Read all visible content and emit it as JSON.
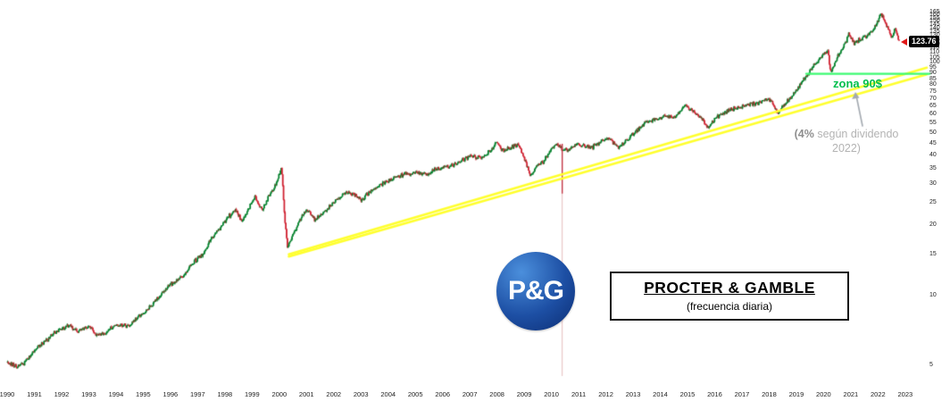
{
  "branding": {
    "logo_text": "P&G",
    "title": "PROCTER & GAMBLE",
    "subtitle": "(frecuencia diaria)"
  },
  "annotations": {
    "zone_label": "zona 90$",
    "note_bold": "(4%",
    "note_rest": " según dividendo",
    "note_line2": "2022)",
    "last_price_label": "123.76"
  },
  "colors": {
    "up": "#00802b",
    "down": "#cf2030",
    "trendline": "#ffff2e",
    "zone_line": "#3dfb71",
    "zone_text": "#00bf4d",
    "note_gray": "#b3b3b3",
    "arrow_gray": "#a3a9b0",
    "flash_crash_red": "#c03040",
    "badge_bg": "#000000",
    "badge_text": "#ffffff"
  },
  "chart_data": {
    "type": "candlestick",
    "title": "PROCTER & GAMBLE",
    "subtitle": "(frecuencia diaria)",
    "y_scale": "log",
    "x_range": [
      1990,
      2023.6
    ],
    "y_range": [
      4.5,
      170
    ],
    "x_ticks": [
      1990,
      1991,
      1992,
      1993,
      1994,
      1995,
      1996,
      1997,
      1998,
      1999,
      2000,
      2001,
      2002,
      2003,
      2004,
      2005,
      2006,
      2007,
      2008,
      2009,
      2010,
      2011,
      2012,
      2013,
      2014,
      2015,
      2016,
      2017,
      2018,
      2019,
      2020,
      2021,
      2022,
      2023
    ],
    "y_ticks": [
      165,
      160,
      155,
      150,
      145,
      140,
      135,
      130,
      125,
      120,
      115,
      110,
      105,
      100,
      95,
      90,
      85,
      80,
      75,
      70,
      65,
      60,
      55,
      50,
      45,
      40,
      35,
      30,
      25,
      20,
      15,
      10,
      5
    ],
    "last_price": 123.76,
    "price_anchors": [
      [
        1990.0,
        5.2
      ],
      [
        1990.3,
        4.95
      ],
      [
        1990.6,
        5.1
      ],
      [
        1991.0,
        5.9
      ],
      [
        1991.4,
        6.4
      ],
      [
        1991.8,
        7.0
      ],
      [
        1992.2,
        7.5
      ],
      [
        1992.6,
        7.1
      ],
      [
        1993.0,
        7.4
      ],
      [
        1993.3,
        6.8
      ],
      [
        1993.7,
        7.1
      ],
      [
        1994.0,
        7.6
      ],
      [
        1994.4,
        7.4
      ],
      [
        1994.8,
        8.1
      ],
      [
        1995.2,
        8.9
      ],
      [
        1995.6,
        10.0
      ],
      [
        1996.0,
        11.2
      ],
      [
        1996.4,
        12.0
      ],
      [
        1996.8,
        13.8
      ],
      [
        1997.2,
        15.2
      ],
      [
        1997.5,
        17.8
      ],
      [
        1997.8,
        19.5
      ],
      [
        1998.1,
        21.8
      ],
      [
        1998.4,
        23.5
      ],
      [
        1998.6,
        20.8
      ],
      [
        1998.9,
        24.2
      ],
      [
        1999.1,
        26.5
      ],
      [
        1999.35,
        23.2
      ],
      [
        1999.6,
        26.8
      ],
      [
        1999.85,
        30.0
      ],
      [
        2000.0,
        33.5
      ],
      [
        2000.07,
        35.5
      ],
      [
        2000.18,
        22.0
      ],
      [
        2000.28,
        16.2
      ],
      [
        2000.45,
        17.8
      ],
      [
        2000.65,
        20.0
      ],
      [
        2000.85,
        22.5
      ],
      [
        2001.0,
        23.2
      ],
      [
        2001.3,
        21.2
      ],
      [
        2001.6,
        22.8
      ],
      [
        2001.9,
        24.6
      ],
      [
        2002.2,
        26.5
      ],
      [
        2002.5,
        28.0
      ],
      [
        2002.8,
        27.0
      ],
      [
        2003.0,
        26.0
      ],
      [
        2003.4,
        28.5
      ],
      [
        2003.8,
        30.5
      ],
      [
        2004.2,
        32.0
      ],
      [
        2004.6,
        33.5
      ],
      [
        2005.0,
        33.8
      ],
      [
        2005.4,
        33.2
      ],
      [
        2005.8,
        35.5
      ],
      [
        2006.2,
        36.0
      ],
      [
        2006.6,
        37.5
      ],
      [
        2007.0,
        40.0
      ],
      [
        2007.4,
        39.0
      ],
      [
        2007.75,
        42.0
      ],
      [
        2007.95,
        45.5
      ],
      [
        2008.2,
        42.0
      ],
      [
        2008.5,
        43.5
      ],
      [
        2008.75,
        45.0
      ],
      [
        2009.0,
        39.0
      ],
      [
        2009.2,
        33.0
      ],
      [
        2009.45,
        36.0
      ],
      [
        2009.7,
        38.0
      ],
      [
        2010.0,
        43.0
      ],
      [
        2010.2,
        44.5
      ],
      [
        2010.38,
        42.5
      ],
      [
        2010.6,
        42.0
      ],
      [
        2010.9,
        45.0
      ],
      [
        2011.2,
        44.0
      ],
      [
        2011.5,
        43.5
      ],
      [
        2011.8,
        46.0
      ],
      [
        2012.1,
        47.5
      ],
      [
        2012.45,
        43.5
      ],
      [
        2012.75,
        46.5
      ],
      [
        2013.0,
        50.0
      ],
      [
        2013.4,
        55.0
      ],
      [
        2013.8,
        57.5
      ],
      [
        2014.1,
        59.0
      ],
      [
        2014.5,
        58.0
      ],
      [
        2014.9,
        66.0
      ],
      [
        2015.2,
        62.0
      ],
      [
        2015.5,
        58.0
      ],
      [
        2015.75,
        52.5
      ],
      [
        2016.0,
        58.0
      ],
      [
        2016.4,
        62.0
      ],
      [
        2016.8,
        64.5
      ],
      [
        2017.2,
        66.5
      ],
      [
        2017.6,
        67.5
      ],
      [
        2017.95,
        70.5
      ],
      [
        2018.1,
        68.0
      ],
      [
        2018.3,
        61.5
      ],
      [
        2018.6,
        67.0
      ],
      [
        2019.0,
        77.0
      ],
      [
        2019.35,
        88.0
      ],
      [
        2019.7,
        100.0
      ],
      [
        2020.0,
        109.0
      ],
      [
        2020.15,
        113.0
      ],
      [
        2020.24,
        90.0
      ],
      [
        2020.5,
        107.0
      ],
      [
        2020.75,
        120.0
      ],
      [
        2020.92,
        133.0
      ],
      [
        2021.1,
        122.0
      ],
      [
        2021.35,
        127.0
      ],
      [
        2021.6,
        132.0
      ],
      [
        2021.85,
        140.0
      ],
      [
        2022.0,
        155.0
      ],
      [
        2022.08,
        163.5
      ],
      [
        2022.2,
        153.0
      ],
      [
        2022.35,
        143.0
      ],
      [
        2022.5,
        128.0
      ],
      [
        2022.62,
        141.0
      ],
      [
        2022.76,
        123.76
      ]
    ],
    "flash_crash_2010": {
      "t": 2010.38,
      "high": 45,
      "low": 27.5
    },
    "trendline_support": {
      "style": "double-line",
      "color": "yellow",
      "points": [
        {
          "t": 2000.35,
          "price": 15.1
        },
        {
          "t": 2023.3,
          "price": 92
        }
      ]
    },
    "resistance_zone": {
      "price": 90,
      "t_start": 2019.36,
      "t_end": 2023.9,
      "label": "zona 90$"
    }
  }
}
